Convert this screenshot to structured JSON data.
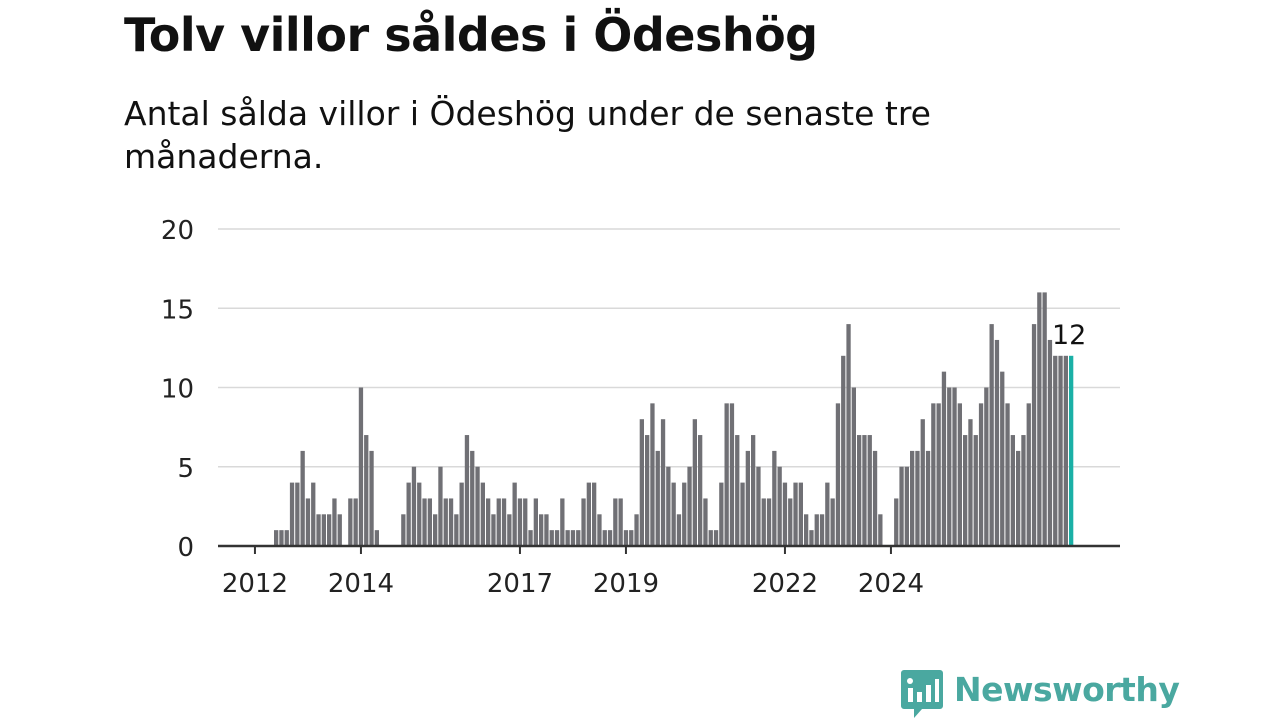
{
  "header": {
    "title": "Tolv villor såldes i Ödeshög",
    "subtitle": "Antal sålda villor i Ödeshög under de senaste tre månaderna."
  },
  "brand": {
    "name": "Newsworthy",
    "color": "#4aa8a0",
    "icon": "bar-chart-speech-bubble-icon"
  },
  "colors": {
    "bar": "#707075",
    "highlight": "#1ab0a6",
    "grid": "#d9d9d9",
    "axis": "#333333"
  },
  "chart_data": {
    "type": "bar",
    "title": "Tolv villor såldes i Ödeshög",
    "subtitle": "Antal sålda villor i Ödeshög under de senaste tre månaderna.",
    "xlabel": "",
    "ylabel": "",
    "ylim": [
      0,
      20
    ],
    "yticks": [
      0,
      5,
      10,
      15,
      20
    ],
    "xticks": [
      "2012",
      "2014",
      "2017",
      "2019",
      "2022",
      "2024"
    ],
    "xtick_positions": [
      6,
      26,
      56,
      76,
      106,
      126
    ],
    "grid": true,
    "legend": "none",
    "highlight_label": "12",
    "values": [
      0,
      0,
      0,
      0,
      0,
      0,
      0,
      0,
      0,
      0,
      1,
      1,
      1,
      4,
      4,
      6,
      3,
      4,
      2,
      2,
      2,
      3,
      2,
      0,
      3,
      3,
      10,
      7,
      6,
      1,
      0,
      0,
      0,
      0,
      2,
      4,
      5,
      4,
      3,
      3,
      2,
      5,
      3,
      3,
      2,
      4,
      7,
      6,
      5,
      4,
      3,
      2,
      3,
      3,
      2,
      4,
      3,
      3,
      1,
      3,
      2,
      2,
      1,
      1,
      3,
      1,
      1,
      1,
      3,
      4,
      4,
      2,
      1,
      1,
      3,
      3,
      1,
      1,
      2,
      8,
      7,
      9,
      6,
      8,
      5,
      4,
      2,
      4,
      5,
      8,
      7,
      3,
      1,
      1,
      4,
      9,
      9,
      7,
      4,
      6,
      7,
      5,
      3,
      3,
      6,
      5,
      4,
      3,
      4,
      4,
      2,
      1,
      2,
      2,
      4,
      3,
      9,
      12,
      14,
      10,
      7,
      7,
      7,
      6,
      2,
      0,
      0,
      3,
      5,
      5,
      6,
      6,
      8,
      6,
      9,
      9,
      11,
      10,
      10,
      9,
      7,
      8,
      7,
      9,
      10,
      14,
      13,
      11,
      9,
      7,
      6,
      7,
      9,
      14,
      16,
      16,
      13,
      12,
      12,
      12,
      12
    ]
  }
}
